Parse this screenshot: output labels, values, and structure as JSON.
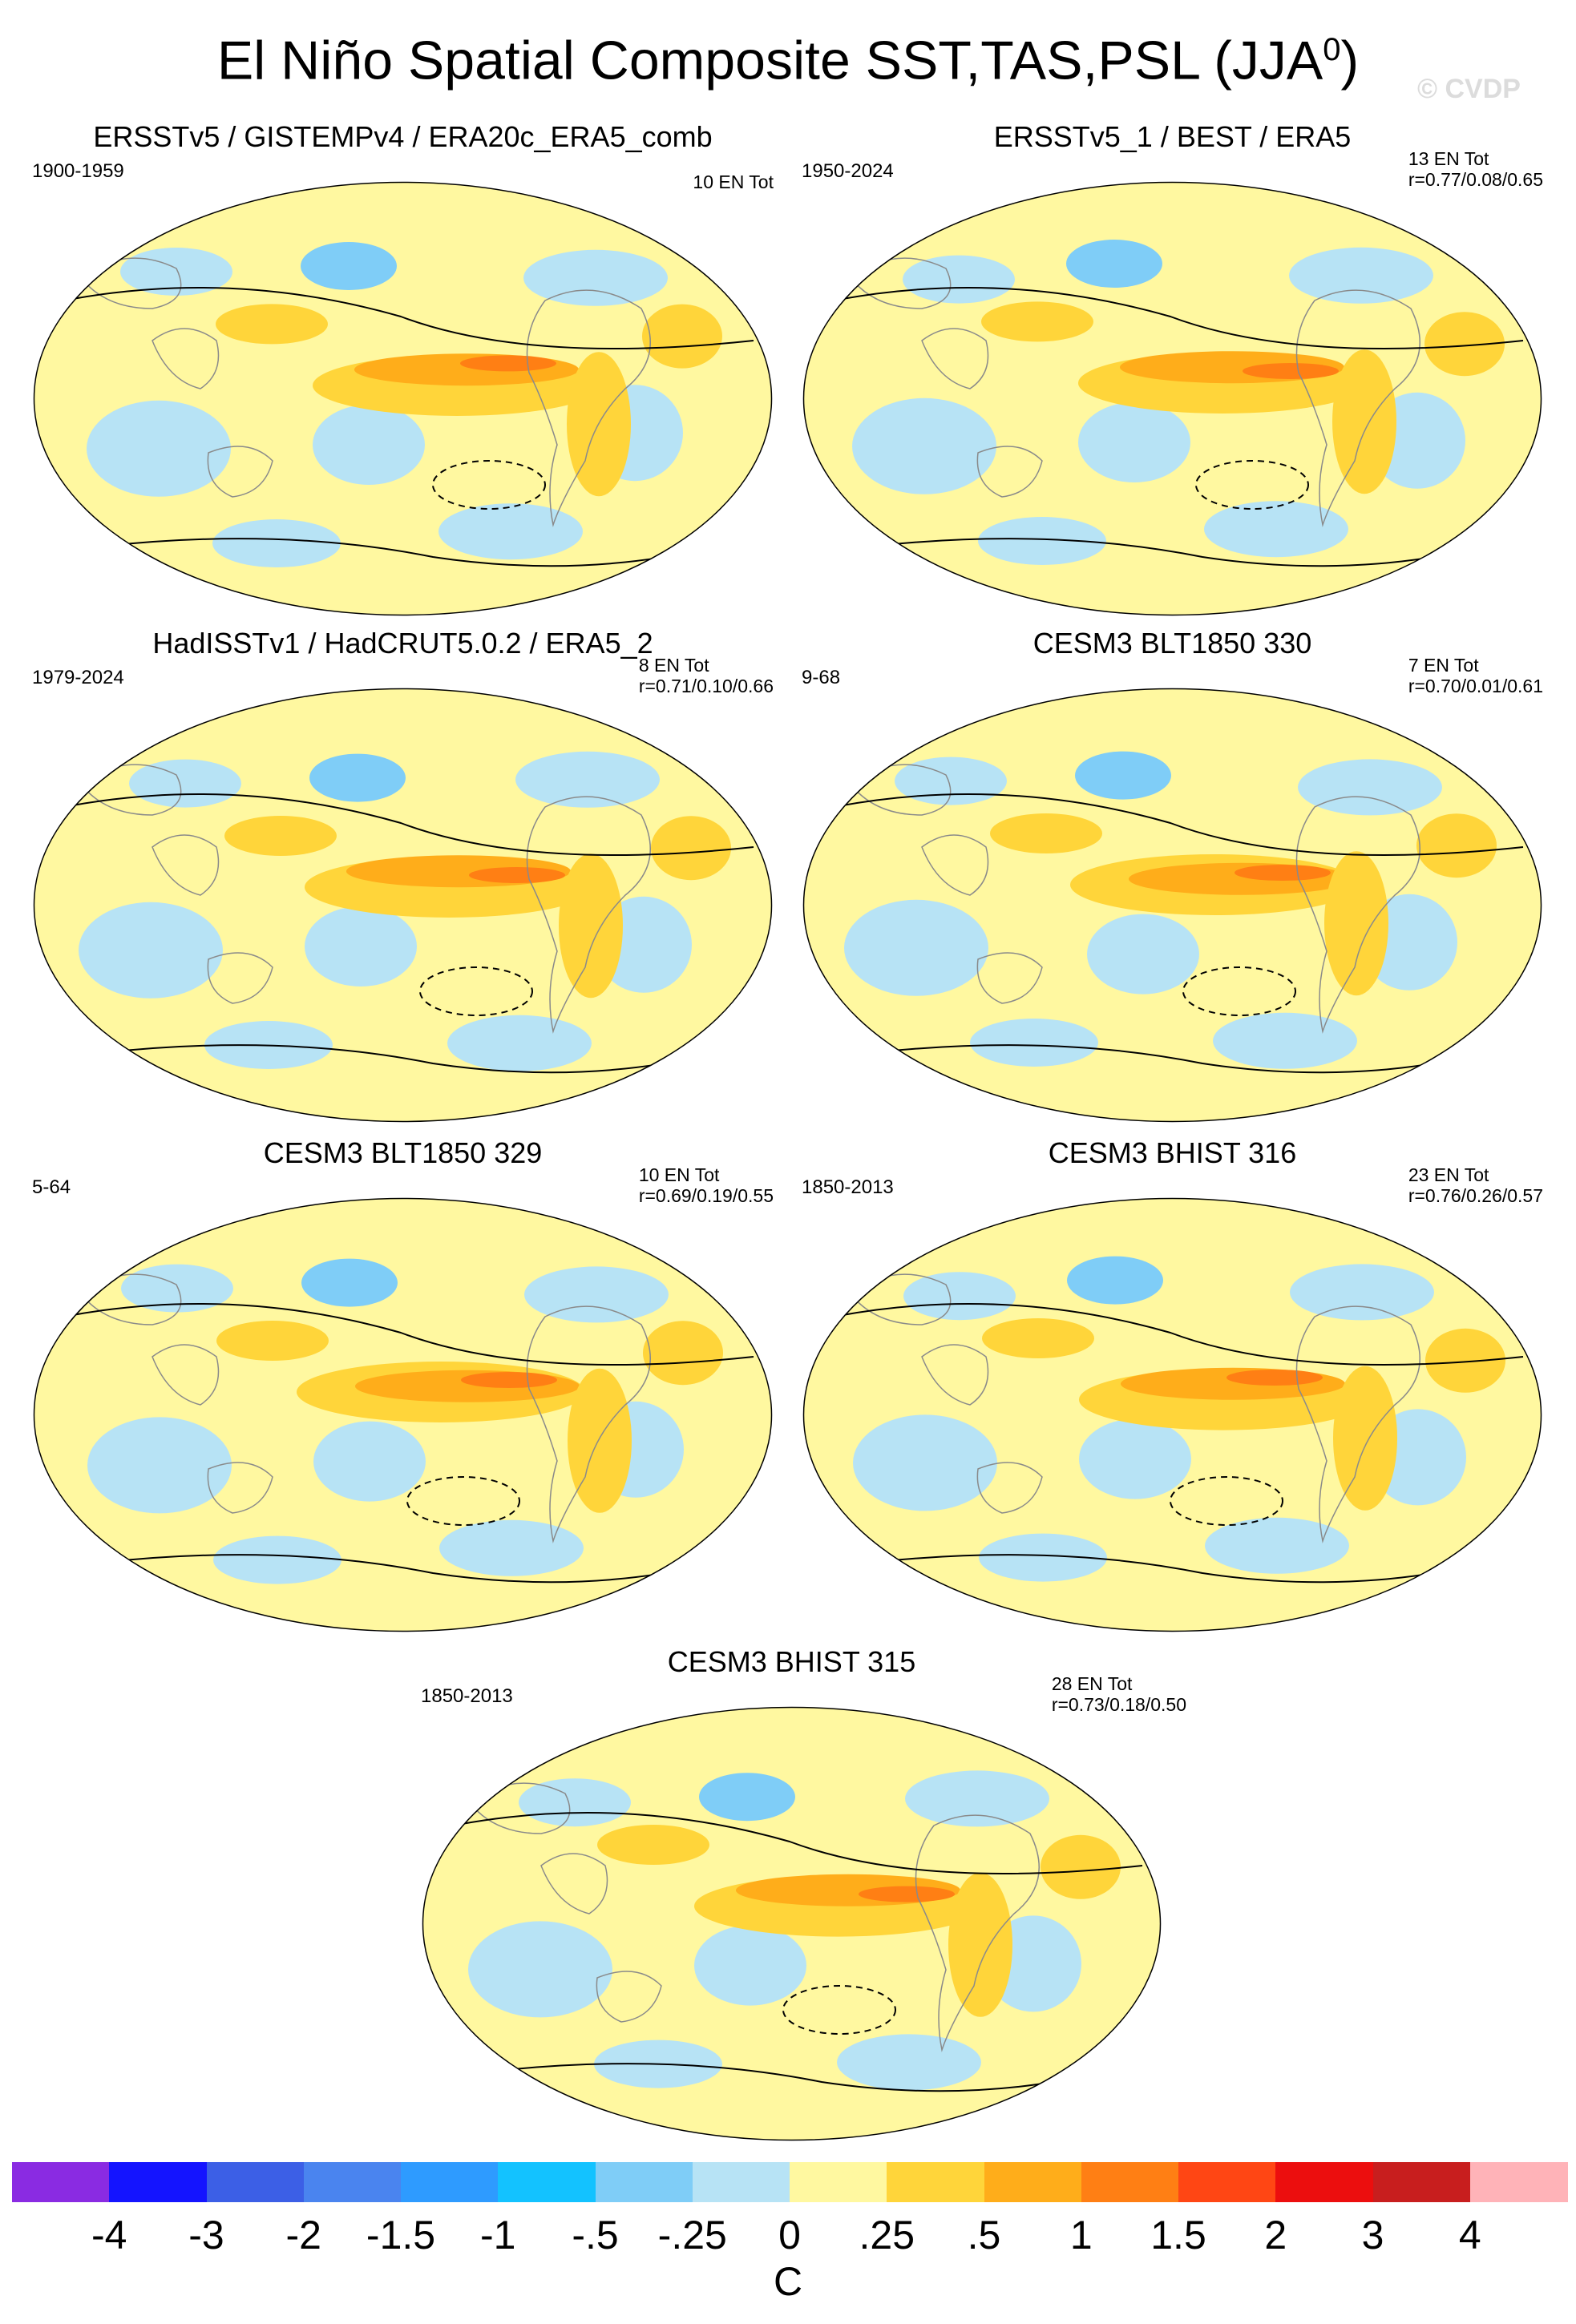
{
  "title": {
    "text": "El Niño Spatial Composite SST,TAS,PSL (JJA",
    "superscript": "0",
    "close": ")"
  },
  "watermark": "© CVDP",
  "panels": [
    {
      "title": "ERSSTv5 / GISTEMPv4 / ERA20c_ERA5_comb",
      "years": "1900-1959",
      "count": "10 EN Tot",
      "corr": ""
    },
    {
      "title": "ERSSTv5_1 / BEST / ERA5",
      "years": "1950-2024",
      "count": "13 EN Tot",
      "corr": "r=0.77/0.08/0.65"
    },
    {
      "title": "HadISSTv1 / HadCRUT5.0.2 / ERA5_2",
      "years": "1979-2024",
      "count": "8 EN Tot",
      "corr": "r=0.71/0.10/0.66"
    },
    {
      "title": "CESM3 BLT1850 330",
      "years": "9-68",
      "count": "7 EN Tot",
      "corr": "r=0.70/0.01/0.61"
    },
    {
      "title": "CESM3 BLT1850 329",
      "years": "5-64",
      "count": "10 EN Tot",
      "corr": "r=0.69/0.19/0.55"
    },
    {
      "title": "CESM3 BHIST 316",
      "years": "1850-2013",
      "count": "23 EN Tot",
      "corr": "r=0.76/0.26/0.57"
    },
    {
      "title": "CESM3 BHIST 315",
      "years": "1850-2013",
      "count": "28 EN Tot",
      "corr": "r=0.73/0.18/0.50"
    }
  ],
  "colorbar": {
    "colors": [
      "#8a2be2",
      "#1414ff",
      "#3c5fe6",
      "#4a84ef",
      "#2e9bff",
      "#13c2ff",
      "#7fcdf7",
      "#b7e3f5",
      "#fff8a0",
      "#ffd53a",
      "#ffad1a",
      "#ff7f14",
      "#ff4614",
      "#ec0e0e",
      "#c81e1e",
      "#ffb3b8"
    ],
    "ticks": [
      "-4",
      "-3",
      "-2",
      "-1.5",
      "-1",
      "-.5",
      "-.25",
      "0",
      ".25",
      ".5",
      "1",
      "1.5",
      "2",
      "3",
      "4"
    ],
    "units": "C"
  },
  "palette": {
    "ocean_base": "#fff8a0",
    "cool_1": "#b7e3f5",
    "cool_2": "#7fcdf7",
    "warm_1": "#ffd53a",
    "warm_2": "#ffad1a",
    "warm_3": "#ff7f14",
    "warm_4": "#ff4614"
  }
}
